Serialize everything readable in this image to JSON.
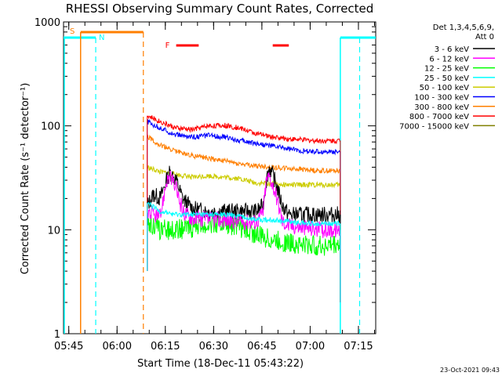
{
  "chart_data": {
    "type": "line",
    "title": "RHESSI Observing Summary Count Rates, Corrected",
    "xlabel": "Start Time (18-Dec-11 05:43:22)",
    "ylabel": "Corrected Count Rate (s⁻¹ detector⁻¹)",
    "ylog": true,
    "ylim": [
      1,
      1000
    ],
    "xlim_minutes": [
      0,
      97
    ],
    "xtick_labels": [
      "05:45",
      "06:00",
      "06:15",
      "06:30",
      "06:45",
      "07:00",
      "07:15"
    ],
    "xtick_minutes": [
      1.63,
      16.63,
      31.63,
      46.63,
      61.63,
      76.63,
      91.63
    ],
    "ytick_labels": [
      "1",
      "10",
      "100",
      "1000"
    ],
    "ytick_values": [
      1,
      10,
      100,
      1000
    ],
    "legend": {
      "header": [
        "Det 1,3,4,5,6,9,",
        "Att 0"
      ],
      "placement": "right-outside"
    },
    "series": [
      {
        "name": "3 - 6 keV",
        "color": "#000000",
        "x": [
          26,
          28,
          30,
          32,
          33,
          35,
          37,
          40,
          45,
          50,
          55,
          60,
          62,
          63,
          64,
          66,
          68,
          70,
          75,
          80,
          86
        ],
        "y": [
          17,
          22,
          20,
          30,
          36,
          30,
          20,
          16,
          15,
          15,
          15,
          15,
          17,
          30,
          40,
          28,
          17,
          14,
          14,
          14,
          14
        ]
      },
      {
        "name": "6 - 12 keV",
        "color": "#ff00ff",
        "x": [
          26,
          28,
          30,
          32,
          33,
          35,
          37,
          40,
          45,
          50,
          55,
          60,
          62,
          63,
          64,
          66,
          68,
          70,
          75,
          80,
          86
        ],
        "y": [
          15,
          14,
          13,
          30,
          32,
          25,
          15,
          13,
          12.5,
          12.5,
          12,
          12,
          15,
          30,
          33,
          22,
          12,
          11,
          10.5,
          10,
          10
        ]
      },
      {
        "name": "12 - 25 keV",
        "color": "#00ff00",
        "x": [
          26,
          30,
          35,
          40,
          45,
          50,
          55,
          60,
          65,
          70,
          75,
          80,
          86
        ],
        "y": [
          12,
          10,
          10,
          10.5,
          11.5,
          11.5,
          10.5,
          9,
          8,
          7.5,
          7.2,
          7,
          7.3
        ]
      },
      {
        "name": "25 - 50 keV",
        "color": "#00ffff",
        "x": [
          26,
          30,
          35,
          40,
          45,
          50,
          55,
          60,
          65,
          70,
          75,
          80,
          86
        ],
        "y": [
          18,
          15,
          14,
          14,
          14,
          14,
          13.5,
          12.5,
          12.5,
          12,
          11.5,
          11.5,
          11.5
        ]
      },
      {
        "name": "50 - 100 keV",
        "color": "#cccc00",
        "x": [
          26,
          30,
          35,
          40,
          45,
          50,
          55,
          60,
          65,
          70,
          75,
          80,
          86
        ],
        "y": [
          40,
          36,
          34,
          32,
          33,
          32,
          31,
          28,
          28,
          27,
          27,
          27,
          27
        ]
      },
      {
        "name": "100 - 300 keV",
        "color": "#0000ff",
        "x": [
          26,
          30,
          35,
          40,
          45,
          50,
          55,
          60,
          65,
          70,
          75,
          80,
          86
        ],
        "y": [
          110,
          95,
          82,
          78,
          81,
          78,
          72,
          68,
          64,
          60,
          57,
          56,
          57
        ]
      },
      {
        "name": "300 - 800 keV",
        "color": "#ff7f00",
        "x": [
          26,
          30,
          35,
          40,
          45,
          50,
          55,
          60,
          65,
          70,
          75,
          80,
          86
        ],
        "y": [
          80,
          65,
          57,
          52,
          49,
          46,
          43,
          41,
          40,
          39,
          38,
          37,
          37
        ]
      },
      {
        "name": "800 - 7000 keV",
        "color": "#ff0000",
        "x": [
          26,
          30,
          35,
          40,
          45,
          50,
          55,
          60,
          65,
          70,
          75,
          80,
          86
        ],
        "y": [
          125,
          110,
          95,
          92,
          100,
          101,
          95,
          84,
          78,
          75,
          73,
          72,
          72
        ]
      },
      {
        "name": "7000 - 15000 keV",
        "color": "#7f7f00",
        "x": [],
        "y": []
      }
    ],
    "markers": {
      "saa": {
        "label": "S",
        "color": "#ff7f00",
        "bar_minutes": [
          5.3,
          24.8
        ],
        "line_minutes": [
          5.3
        ],
        "dashed_minutes": [
          24.8
        ]
      },
      "night": {
        "label": "N",
        "color": "#00ffff",
        "bar_minutes": [
          0,
          10
        ],
        "line_minutes": [
          0
        ],
        "dashed_minutes": [
          10
        ],
        "bar2_minutes": [
          86,
          97
        ],
        "line2_minutes": [
          86
        ],
        "dashed2_minutes": [
          92
        ]
      },
      "flare": {
        "label": "F",
        "color": "#ff0000",
        "intervals_minutes": [
          [
            35,
            42
          ],
          [
            65,
            70
          ]
        ]
      }
    }
  },
  "footer_timestamp": "23-Oct-2021 09:43"
}
